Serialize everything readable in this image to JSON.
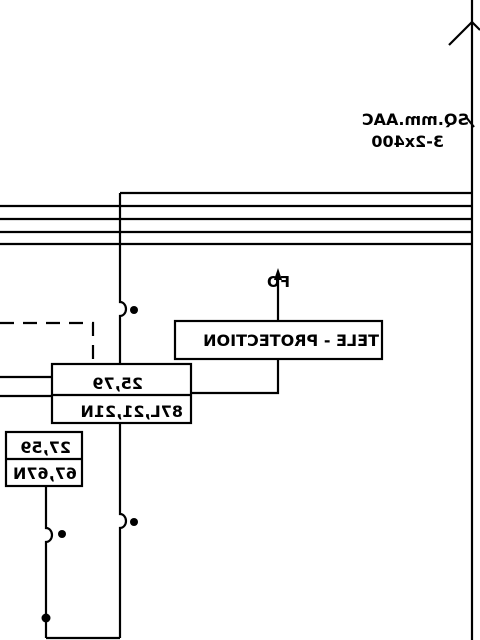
{
  "labels": {
    "cable_spec_line1": "SQ.mm.AAC",
    "cable_spec_line2": "3-2x400",
    "fo_label": "FO",
    "teleprotection": "TELE - PROTECTION",
    "relay_main_top": "25,79",
    "relay_main_bottom": "87L,21,21N",
    "relay_small_top": "27,59",
    "relay_small_bottom": "67,67N"
  },
  "colors": {
    "line": "#000000",
    "background": "#ffffff"
  }
}
